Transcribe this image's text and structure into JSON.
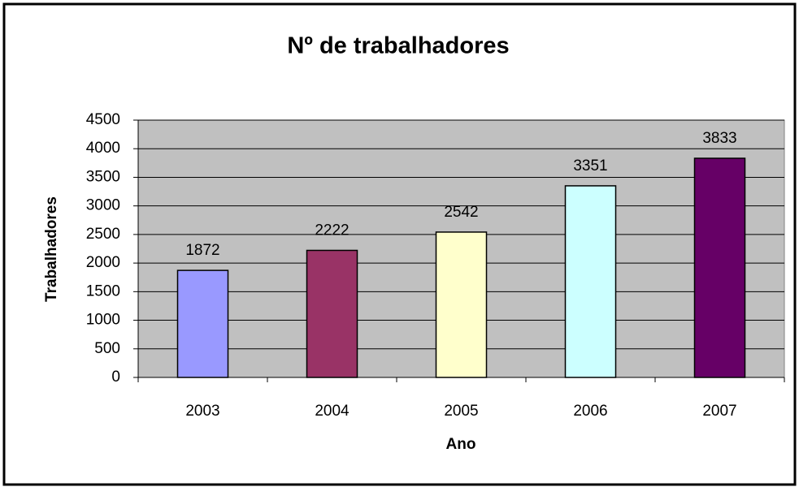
{
  "chart_data": {
    "type": "bar",
    "title": "Nº de trabalhadores",
    "x_label": "Ano",
    "y_label": "Trabalhadores",
    "categories": [
      "2003",
      "2004",
      "2005",
      "2006",
      "2007"
    ],
    "values": [
      1872,
      2222,
      2542,
      3351,
      3833
    ],
    "colors": [
      "#9999ff",
      "#993366",
      "#ffffcc",
      "#ccffff",
      "#660066"
    ],
    "ylim": [
      0,
      4500
    ],
    "yticks": [
      0,
      500,
      1000,
      1500,
      2000,
      2500,
      3000,
      3500,
      4000,
      4500
    ],
    "grid": true
  }
}
